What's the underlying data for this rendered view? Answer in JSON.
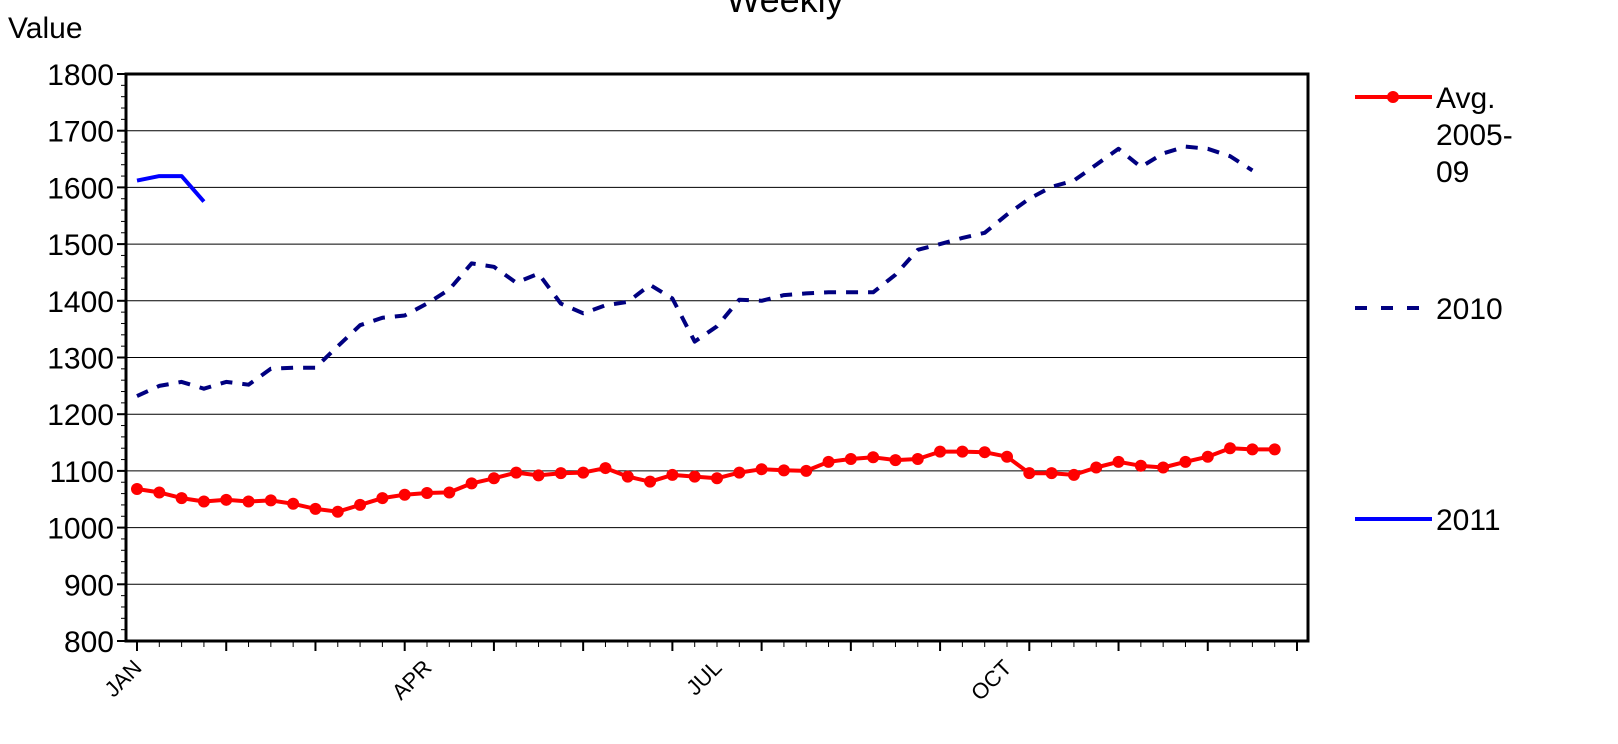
{
  "chart_data": {
    "type": "line",
    "title": "Weekly",
    "ylabel": "Value",
    "xlabel": "",
    "ylim": [
      800,
      1800
    ],
    "yticks": [
      800,
      900,
      1000,
      1100,
      1200,
      1300,
      1400,
      1500,
      1600,
      1700,
      1800
    ],
    "x_tick_labels": [
      {
        "label": "JAN",
        "week": 1
      },
      {
        "label": "APR",
        "week": 14
      },
      {
        "label": "JUL",
        "week": 27
      },
      {
        "label": "OCT",
        "week": 40
      }
    ],
    "weeks": 53,
    "gridlines": "horizontal",
    "legend_position": "right",
    "series": [
      {
        "name": "Avg. 2005-09",
        "color": "#ff0000",
        "style": "solid-markers",
        "values": [
          1068,
          1062,
          1052,
          1046,
          1049,
          1046,
          1048,
          1042,
          1033,
          1028,
          1040,
          1052,
          1058,
          1061,
          1062,
          1078,
          1087,
          1097,
          1092,
          1096,
          1097,
          1105,
          1090,
          1081,
          1093,
          1090,
          1087,
          1097,
          1103,
          1101,
          1100,
          1116,
          1121,
          1124,
          1119,
          1121,
          1134,
          1134,
          1133,
          1125,
          1096,
          1096,
          1093,
          1106,
          1116,
          1109,
          1106,
          1116,
          1125,
          1140,
          1138,
          1138
        ]
      },
      {
        "name": "2010",
        "color": "#000080",
        "style": "dashed",
        "values": [
          1232,
          1250,
          1257,
          1245,
          1257,
          1252,
          1280,
          1282,
          1282,
          1320,
          1357,
          1370,
          1374,
          1395,
          1420,
          1466,
          1460,
          1432,
          1448,
          1395,
          1378,
          1392,
          1398,
          1428,
          1404,
          1328,
          1355,
          1402,
          1400,
          1410,
          1413,
          1415,
          1415,
          1415,
          1446,
          1490,
          1500,
          1511,
          1520,
          1552,
          1580,
          1601,
          1612,
          1640,
          1668,
          1636,
          1660,
          1672,
          1668,
          1655,
          1630
        ]
      },
      {
        "name": "2011",
        "color": "#0000ff",
        "style": "solid",
        "values": [
          1612,
          1620,
          1620,
          1575
        ]
      }
    ]
  }
}
